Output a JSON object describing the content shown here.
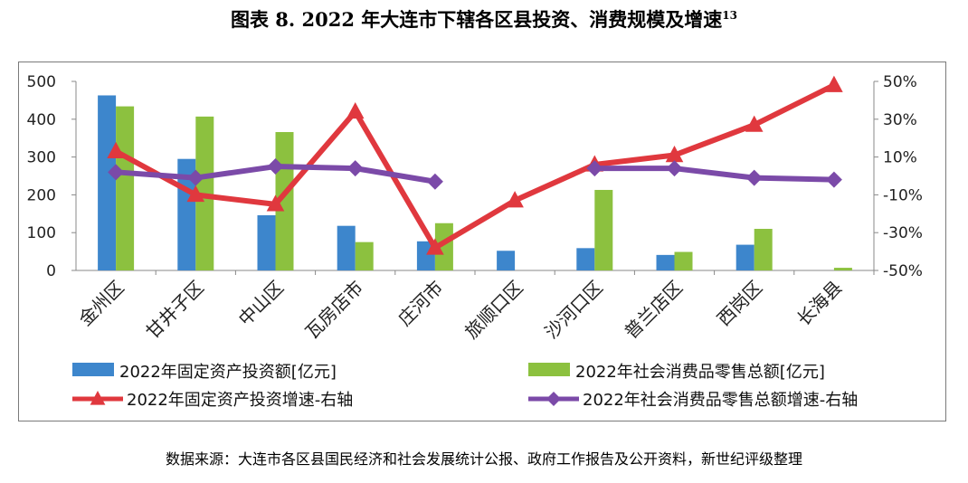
{
  "title": {
    "main": "图表 8.   2022 年大连市下辖各区县投资、消费规模及增速",
    "note": "13"
  },
  "source": "数据来源：大连市各区县国民经济和社会发展统计公报、政府工作报告及公开资料，新世纪评级整理",
  "chart_data": {
    "type": "bar+line",
    "categories": [
      "金州区",
      "甘井子区",
      "中山区",
      "瓦房店市",
      "庄河市",
      "旅顺口区",
      "沙河口区",
      "普兰店区",
      "西岗区",
      "长海县"
    ],
    "left_axis": {
      "ylim": [
        0,
        500
      ],
      "ticks": [
        "500",
        "400",
        "300",
        "200",
        "100",
        "0"
      ]
    },
    "right_axis": {
      "ylim": [
        -50,
        50
      ],
      "ticks": [
        "50%",
        "30%",
        "10%",
        "-10%",
        "-30%",
        "-50%"
      ]
    },
    "series": [
      {
        "name": "2022年固定资产投资额[亿元]",
        "type": "bar",
        "axis": "left",
        "color": "#3d86cc",
        "values": [
          463,
          295,
          146,
          118,
          77,
          52,
          59,
          41,
          68,
          null
        ]
      },
      {
        "name": "2022年社会消费品零售总额[亿元]",
        "type": "bar",
        "axis": "left",
        "color": "#8cc13f",
        "values": [
          434,
          407,
          366,
          75,
          125,
          null,
          213,
          49,
          110,
          7
        ]
      },
      {
        "name": "2022年固定资产投资增速-右轴",
        "type": "line",
        "axis": "right",
        "color": "#e0383e",
        "marker": "triangle",
        "values": [
          13,
          -10,
          -15,
          34,
          -38,
          -13,
          6,
          11,
          27,
          48
        ]
      },
      {
        "name": "2022年社会消费品零售总额增速-右轴",
        "type": "line",
        "axis": "right",
        "color": "#7b4aa8",
        "marker": "diamond",
        "values": [
          2,
          -1,
          5,
          4,
          -3,
          null,
          4,
          4,
          -1,
          -2
        ]
      }
    ],
    "legend_position": "bottom"
  }
}
